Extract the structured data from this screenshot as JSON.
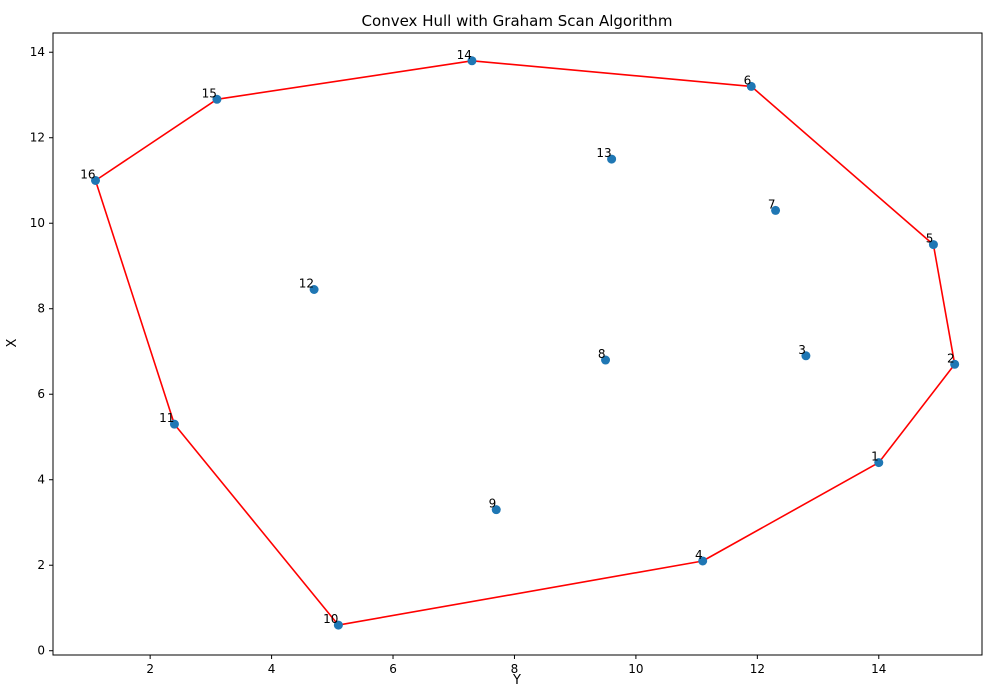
{
  "chart_data": {
    "type": "scatter",
    "title": "Convex Hull with Graham Scan Algorithm",
    "xlabel": "Y",
    "ylabel": "X",
    "xlim": [
      0.4,
      15.7
    ],
    "ylim": [
      -0.1,
      14.45
    ],
    "xticks": [
      2,
      4,
      6,
      8,
      10,
      12,
      14
    ],
    "yticks": [
      0,
      2,
      4,
      6,
      8,
      10,
      12,
      14
    ],
    "grid": false,
    "point_color": "#1f77b4",
    "hull_color": "#ff0000",
    "points": [
      {
        "label": "1",
        "x": 14.0,
        "y": 4.4
      },
      {
        "label": "2",
        "x": 15.25,
        "y": 6.7
      },
      {
        "label": "3",
        "x": 12.8,
        "y": 6.9
      },
      {
        "label": "4",
        "x": 11.1,
        "y": 2.1
      },
      {
        "label": "5",
        "x": 14.9,
        "y": 9.5
      },
      {
        "label": "6",
        "x": 11.9,
        "y": 13.2
      },
      {
        "label": "7",
        "x": 12.3,
        "y": 10.3
      },
      {
        "label": "8",
        "x": 9.5,
        "y": 6.8
      },
      {
        "label": "9",
        "x": 7.7,
        "y": 3.3
      },
      {
        "label": "10",
        "x": 5.1,
        "y": 0.6
      },
      {
        "label": "11",
        "x": 2.4,
        "y": 5.3
      },
      {
        "label": "12",
        "x": 4.7,
        "y": 8.45
      },
      {
        "label": "13",
        "x": 9.6,
        "y": 11.5
      },
      {
        "label": "14",
        "x": 7.3,
        "y": 13.8
      },
      {
        "label": "15",
        "x": 3.1,
        "y": 12.9
      },
      {
        "label": "16",
        "x": 1.1,
        "y": 11.0
      }
    ],
    "hull": [
      "10",
      "4",
      "1",
      "2",
      "5",
      "6",
      "14",
      "15",
      "16",
      "11",
      "10"
    ]
  }
}
